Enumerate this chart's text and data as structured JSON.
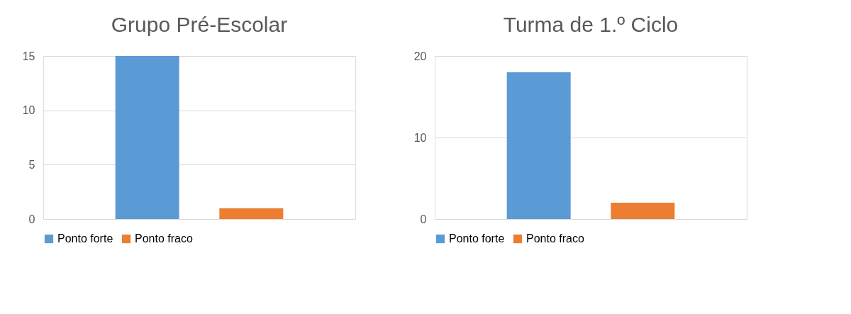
{
  "chart_data": [
    {
      "type": "bar",
      "title": "Grupo Pré-Escolar",
      "categories": [
        null
      ],
      "series": [
        {
          "name": "Ponto forte",
          "color": "#5b9bd5",
          "values": [
            15
          ]
        },
        {
          "name": "Ponto fraco",
          "color": "#ed7d31",
          "values": [
            1
          ]
        }
      ],
      "ylim": [
        0,
        15
      ],
      "yticks": [
        0,
        5,
        10,
        15
      ],
      "grid": "y",
      "legend": "bottom"
    },
    {
      "type": "bar",
      "title": "Turma de 1.º Ciclo",
      "categories": [
        null
      ],
      "series": [
        {
          "name": "Ponto forte",
          "color": "#5b9bd5",
          "values": [
            18
          ]
        },
        {
          "name": "Ponto fraco",
          "color": "#ed7d31",
          "values": [
            2
          ]
        }
      ],
      "ylim": [
        0,
        20
      ],
      "yticks": [
        0,
        10,
        20
      ],
      "grid": "y",
      "legend": "bottom"
    }
  ]
}
